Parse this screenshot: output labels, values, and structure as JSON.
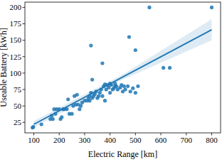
{
  "chart_data": {
    "type": "scatter",
    "x_label": "Electric Range [km]",
    "y_label": "Useable Battery [kWh]",
    "xlim": [
      65,
      835
    ],
    "ylim": [
      9,
      208
    ],
    "xticks": [
      100,
      200,
      300,
      400,
      500,
      600,
      700,
      800
    ],
    "yticks": [
      25,
      50,
      75,
      100,
      125,
      150,
      175,
      200
    ],
    "grid": false,
    "series": [
      {
        "type": "scatter",
        "color": "#1f77b4",
        "marker": "circle",
        "x": [
          95,
          98,
          130,
          165,
          170,
          175,
          180,
          185,
          190,
          200,
          205,
          210,
          215,
          220,
          230,
          235,
          240,
          250,
          255,
          260,
          265,
          270,
          275,
          280,
          285,
          290,
          300,
          310,
          315,
          320,
          320,
          325,
          330,
          335,
          340,
          345,
          350,
          355,
          360,
          365,
          370,
          375,
          380,
          385,
          390,
          395,
          400,
          405,
          410,
          415,
          420,
          425,
          430,
          440,
          445,
          450,
          455,
          460,
          470,
          480,
          490,
          500,
          510,
          380,
          400,
          420,
          330,
          325,
          370,
          475,
          500,
          555,
          610,
          635,
          800
        ],
        "values": [
          17,
          18,
          22,
          30,
          35,
          30,
          45,
          38,
          45,
          45,
          30,
          33,
          45,
          45,
          45,
          60,
          38,
          38,
          50,
          65,
          52,
          67,
          52,
          45,
          50,
          55,
          58,
          58,
          62,
          58,
          65,
          70,
          62,
          65,
          68,
          72,
          62,
          65,
          70,
          75,
          65,
          80,
          58,
          75,
          82,
          78,
          70,
          82,
          75,
          77,
          80,
          80,
          75,
          78,
          82,
          72,
          80,
          75,
          80,
          72,
          77,
          70,
          80,
          83,
          84,
          84,
          90,
          142,
          115,
          155,
          135,
          200,
          108,
          108,
          200
        ]
      },
      {
        "type": "line",
        "color": "#1f77b4",
        "line_style": "solid",
        "x": [
          100,
          450,
          800
        ],
        "values": [
          22,
          94,
          166
        ],
        "lower": [
          17,
          90,
          150
        ],
        "upper": [
          27,
          98,
          182
        ]
      }
    ]
  }
}
